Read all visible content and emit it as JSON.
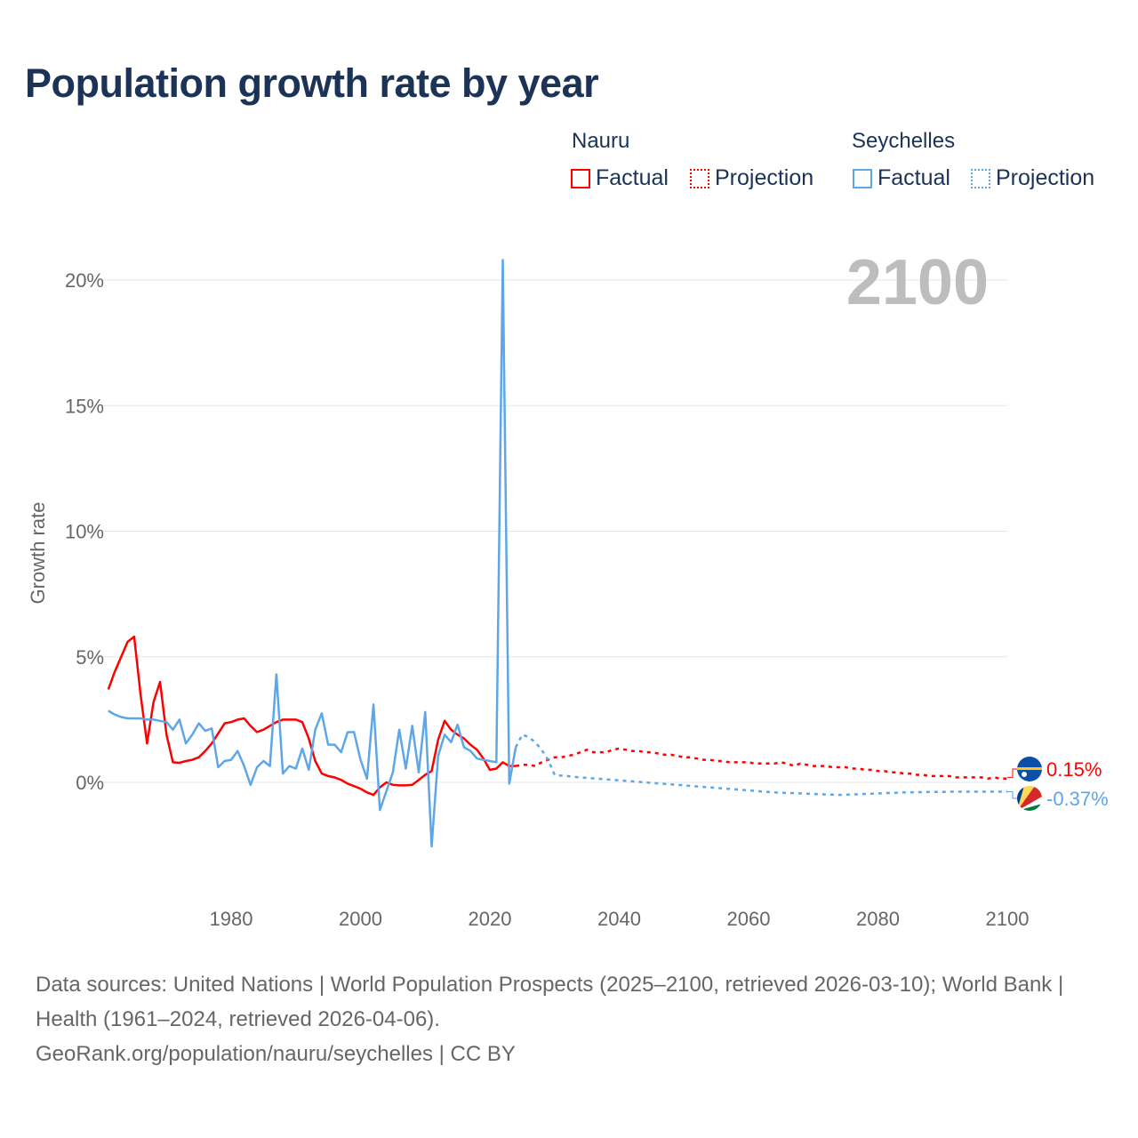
{
  "title": "Population growth rate by year",
  "legend": {
    "groups": [
      {
        "name": "Nauru",
        "color": "#ff0000",
        "items": [
          "Factual",
          "Projection"
        ]
      },
      {
        "name": "Seychelles",
        "color": "#5ea6e8",
        "items": [
          "Factual",
          "Projection"
        ]
      }
    ]
  },
  "year_label": "2100",
  "end_labels": {
    "nauru": "0.15%",
    "seychelles": "-0.37%"
  },
  "footer": {
    "sources": "Data sources: United Nations | World Population Prospects (2025–2100, retrieved 2026-03-10); World Bank | Health (1961–2024, retrieved 2026-04-06).",
    "credit": "GeoRank.org/population/nauru/seychelles | CC BY"
  },
  "chart_data": {
    "type": "line",
    "title": "Population growth rate by year",
    "xlabel": "",
    "ylabel": "Growth rate",
    "xlim": [
      1960,
      2100
    ],
    "ylim": [
      -4.5,
      20.8
    ],
    "xticks": [
      "1980",
      "2000",
      "2020",
      "2040",
      "2060",
      "2080",
      "2100"
    ],
    "yticks": [
      "0%",
      "5%",
      "10%",
      "15%",
      "20%"
    ],
    "ytick_values": [
      0,
      5,
      10,
      15,
      20
    ],
    "xtick_values": [
      1980,
      2000,
      2020,
      2040,
      2060,
      2080,
      2100
    ],
    "grid": true,
    "series": [
      {
        "name": "Nauru Factual",
        "color": "#ff0000",
        "dash": false,
        "start": 1961,
        "values": [
          3.7,
          4.4,
          5.0,
          5.6,
          5.8,
          3.5,
          1.55,
          3.2,
          4.0,
          1.9,
          0.8,
          0.78,
          0.85,
          0.9,
          1.0,
          1.25,
          1.55,
          1.95,
          2.35,
          2.4,
          2.5,
          2.55,
          2.25,
          2.0,
          2.1,
          2.25,
          2.4,
          2.5,
          2.5,
          2.5,
          2.4,
          1.75,
          0.85,
          0.35,
          0.25,
          0.2,
          0.1,
          -0.05,
          -0.15,
          -0.25,
          -0.4,
          -0.5,
          -0.2,
          0.0,
          -0.1,
          -0.12,
          -0.12,
          -0.1,
          0.1,
          0.3,
          0.45,
          1.7,
          2.45,
          2.1,
          1.9,
          1.75,
          1.5,
          1.3,
          0.95,
          0.5,
          0.55,
          0.8,
          0.65,
          0.65
        ]
      },
      {
        "name": "Nauru Projection",
        "color": "#ff0000",
        "dash": true,
        "start": 2024,
        "values": [
          0.65,
          0.7,
          0.7,
          0.65,
          0.8,
          0.9,
          1.0,
          1.0,
          1.05,
          1.1,
          1.2,
          1.3,
          1.2,
          1.2,
          1.2,
          1.3,
          1.35,
          1.3,
          1.25,
          1.25,
          1.2,
          1.2,
          1.15,
          1.1,
          1.1,
          1.05,
          1.0,
          1.0,
          0.95,
          0.9,
          0.9,
          0.85,
          0.85,
          0.8,
          0.8,
          0.8,
          0.8,
          0.75,
          0.75,
          0.75,
          0.75,
          0.8,
          0.75,
          0.65,
          0.75,
          0.7,
          0.65,
          0.65,
          0.65,
          0.6,
          0.6,
          0.6,
          0.55,
          0.55,
          0.5,
          0.5,
          0.45,
          0.45,
          0.4,
          0.4,
          0.35,
          0.35,
          0.3,
          0.3,
          0.25,
          0.25,
          0.25,
          0.25,
          0.2,
          0.2,
          0.2,
          0.2,
          0.2,
          0.15,
          0.2,
          0.15,
          0.15
        ]
      },
      {
        "name": "Seychelles Factual",
        "color": "#5ea6e8",
        "dash": false,
        "start": 1961,
        "values": [
          2.85,
          2.7,
          2.6,
          2.55,
          2.55,
          2.55,
          2.5,
          2.5,
          2.45,
          2.4,
          2.1,
          2.5,
          1.55,
          1.9,
          2.35,
          2.05,
          2.15,
          0.6,
          0.85,
          0.9,
          1.25,
          0.65,
          -0.1,
          0.6,
          0.85,
          0.65,
          4.3,
          0.35,
          0.65,
          0.55,
          1.35,
          0.5,
          2.1,
          2.75,
          1.5,
          1.5,
          1.2,
          2.0,
          2.0,
          0.9,
          0.15,
          3.1,
          -1.1,
          -0.35,
          0.4,
          2.1,
          0.55,
          2.25,
          0.4,
          2.8,
          -2.55,
          1.05,
          1.9,
          1.6,
          2.3,
          1.4,
          1.25,
          0.95,
          0.9,
          0.85,
          0.8,
          20.8,
          -0.05,
          1.4
        ]
      },
      {
        "name": "Seychelles Projection",
        "color": "#5ea6e8",
        "dash": true,
        "start": 2024,
        "values": [
          1.4,
          1.9,
          1.8,
          1.6,
          1.3,
          0.9,
          0.3,
          0.27,
          0.25,
          0.22,
          0.2,
          0.18,
          0.16,
          0.14,
          0.12,
          0.1,
          0.08,
          0.06,
          0.04,
          0.02,
          0.0,
          -0.02,
          -0.04,
          -0.06,
          -0.08,
          -0.1,
          -0.12,
          -0.14,
          -0.16,
          -0.18,
          -0.2,
          -0.22,
          -0.24,
          -0.26,
          -0.28,
          -0.3,
          -0.32,
          -0.34,
          -0.36,
          -0.38,
          -0.4,
          -0.41,
          -0.42,
          -0.43,
          -0.44,
          -0.45,
          -0.46,
          -0.47,
          -0.48,
          -0.49,
          -0.5,
          -0.49,
          -0.48,
          -0.47,
          -0.46,
          -0.45,
          -0.44,
          -0.43,
          -0.42,
          -0.41,
          -0.4,
          -0.4,
          -0.39,
          -0.39,
          -0.38,
          -0.38,
          -0.38,
          -0.37,
          -0.37,
          -0.37,
          -0.37,
          -0.37,
          -0.37,
          -0.37,
          -0.37,
          -0.37,
          -0.37
        ]
      }
    ]
  }
}
